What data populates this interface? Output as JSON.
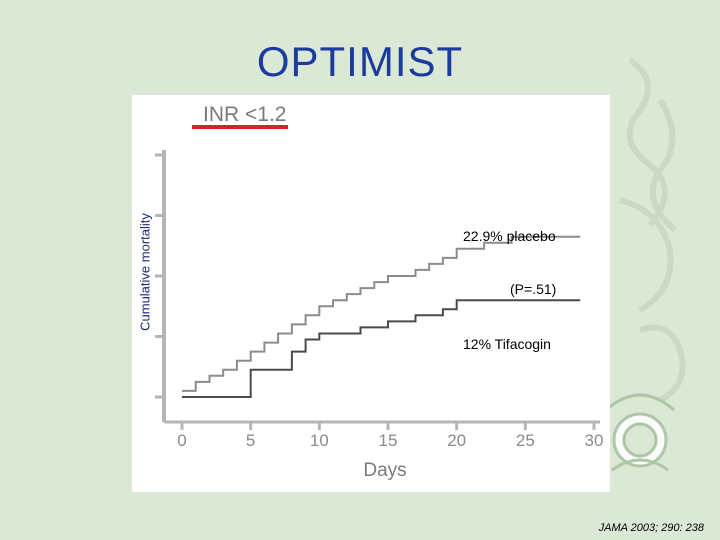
{
  "slide": {
    "title": "OPTIMIST",
    "citation": "JAMA 2003; 290: 238"
  },
  "colors": {
    "title": "#1b3b9e",
    "placebo_line": "#8c8c8c",
    "tifacogin_line": "#4a4a4a",
    "panel_label_underline": "#e02020",
    "axis": "#b5b5b5",
    "background": "#dce8d6"
  },
  "chart_data": {
    "type": "line",
    "title": "INR <1.2",
    "xlabel": "Days",
    "ylabel": "Cumulative mortality",
    "xlim": [
      0,
      30
    ],
    "ylim": [
      0,
      4
    ],
    "x_ticks": [
      0,
      5,
      10,
      15,
      20,
      25,
      30
    ],
    "y_tick_count": 5,
    "y_tick_labels_shown": false,
    "grid": false,
    "legend": "none",
    "step": true,
    "series": [
      {
        "name": "placebo",
        "color": "#8c8c8c",
        "points": [
          [
            0,
            0.1
          ],
          [
            1,
            0.1
          ],
          [
            1,
            0.25
          ],
          [
            2,
            0.25
          ],
          [
            2,
            0.35
          ],
          [
            3,
            0.35
          ],
          [
            3,
            0.45
          ],
          [
            4,
            0.45
          ],
          [
            4,
            0.6
          ],
          [
            5,
            0.6
          ],
          [
            5,
            0.75
          ],
          [
            6,
            0.75
          ],
          [
            6,
            0.9
          ],
          [
            7,
            0.9
          ],
          [
            7,
            1.05
          ],
          [
            8,
            1.05
          ],
          [
            8,
            1.2
          ],
          [
            9,
            1.2
          ],
          [
            9,
            1.35
          ],
          [
            10,
            1.35
          ],
          [
            10,
            1.5
          ],
          [
            11,
            1.5
          ],
          [
            11,
            1.6
          ],
          [
            12,
            1.6
          ],
          [
            12,
            1.7
          ],
          [
            13,
            1.7
          ],
          [
            13,
            1.8
          ],
          [
            14,
            1.8
          ],
          [
            14,
            1.9
          ],
          [
            15,
            1.9
          ],
          [
            15,
            2.0
          ],
          [
            17,
            2.0
          ],
          [
            17,
            2.1
          ],
          [
            18,
            2.1
          ],
          [
            18,
            2.2
          ],
          [
            19,
            2.2
          ],
          [
            19,
            2.3
          ],
          [
            20,
            2.3
          ],
          [
            20,
            2.45
          ],
          [
            22,
            2.45
          ],
          [
            22,
            2.55
          ],
          [
            24,
            2.55
          ],
          [
            24,
            2.65
          ],
          [
            29,
            2.65
          ]
        ]
      },
      {
        "name": "Tifacogin",
        "color": "#4a4a4a",
        "points": [
          [
            0,
            0
          ],
          [
            5,
            0
          ],
          [
            5,
            0.45
          ],
          [
            8,
            0.45
          ],
          [
            8,
            0.75
          ],
          [
            9,
            0.75
          ],
          [
            9,
            0.95
          ],
          [
            10,
            0.95
          ],
          [
            10,
            1.05
          ],
          [
            13,
            1.05
          ],
          [
            13,
            1.15
          ],
          [
            15,
            1.15
          ],
          [
            15,
            1.25
          ],
          [
            17,
            1.25
          ],
          [
            17,
            1.35
          ],
          [
            19,
            1.35
          ],
          [
            19,
            1.45
          ],
          [
            20,
            1.45
          ],
          [
            20,
            1.6
          ],
          [
            29,
            1.6
          ]
        ]
      }
    ],
    "annotations": {
      "placebo": "22.9% placebo",
      "p_value": "(P=.51)",
      "tifacogin": "12% Tifacogin"
    }
  }
}
